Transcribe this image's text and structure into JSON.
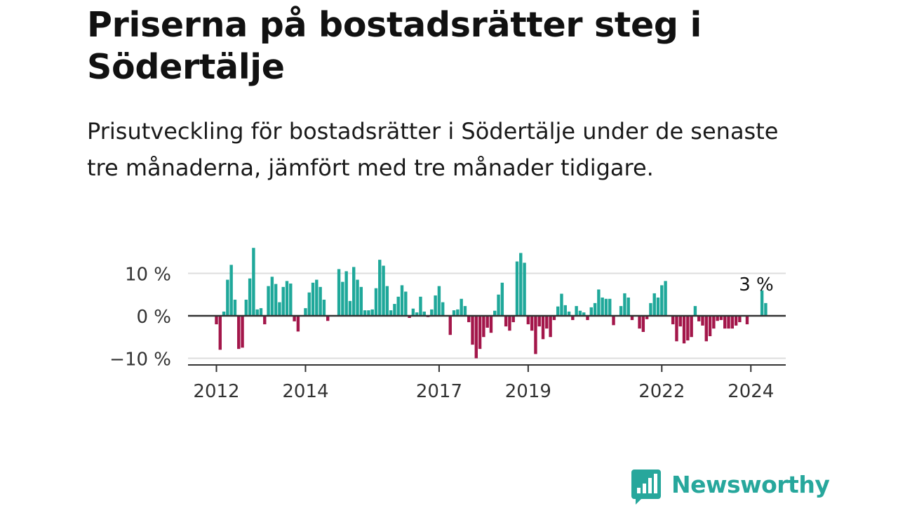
{
  "title": "Priserna på bostadsrätter steg i Södertälje",
  "subtitle": "Prisutveckling för bostadsrätter i Södertälje under de senaste tre månaderna, jämfört med tre månader tidigare.",
  "logo": {
    "text": "Newsworthy",
    "icon": "bar-chart-speech-icon"
  },
  "colors": {
    "positive": "#1fa89a",
    "negative": "#a3164a",
    "axis": "#333333",
    "grid": "#dddddd",
    "brand": "#27a79c"
  },
  "chart_data": {
    "type": "bar",
    "title": "",
    "xlabel": "",
    "ylabel": "",
    "ylim": [
      -11,
      15
    ],
    "y_ticks": [
      {
        "value": 10,
        "label": "10 %"
      },
      {
        "value": 0,
        "label": "0 %"
      },
      {
        "value": -10,
        "label": "−10 %"
      }
    ],
    "x_ticks": [
      "2012",
      "2014",
      "2017",
      "2019",
      "2022",
      "2024"
    ],
    "grid": true,
    "legend": "none",
    "start": "2012-01",
    "frequency": "monthly",
    "annotation": {
      "text": "3 %",
      "value": 3
    },
    "values": [
      -2,
      -8,
      1,
      8.5,
      12,
      3.8,
      -7.8,
      -7.5,
      3.8,
      8.8,
      16,
      1.5,
      1.8,
      -2,
      7,
      9.2,
      7.5,
      3.2,
      6.8,
      8.2,
      7.6,
      -1.3,
      -3.7,
      0,
      1.8,
      5.5,
      7.8,
      8.5,
      6.8,
      3.8,
      -1.2,
      0,
      0,
      11,
      8,
      10.5,
      3.5,
      11.5,
      8.5,
      6.8,
      1.3,
      1.3,
      1.5,
      6.5,
      13.2,
      11.8,
      7,
      1.3,
      2.8,
      4.5,
      7.2,
      5.7,
      -0.5,
      1.7,
      0.8,
      4.5,
      1,
      -0.3,
      1.5,
      4.8,
      7,
      3.2,
      0,
      -4.5,
      1.3,
      1.5,
      4,
      2.3,
      -1.5,
      -6.8,
      -10,
      -7.8,
      -5,
      -2.8,
      -4,
      1.2,
      5,
      7.8,
      -2.5,
      -3.5,
      -1.5,
      12.8,
      14.8,
      12.5,
      -2,
      -3.5,
      -9,
      -2.5,
      -5.5,
      -3,
      -5,
      -1,
      2.2,
      5.2,
      2.5,
      1,
      -1,
      2.3,
      1.2,
      0.8,
      -1,
      2,
      3,
      6.2,
      4.3,
      4,
      4,
      -2.2,
      0,
      2.3,
      5.3,
      4.3,
      -1,
      0,
      -3,
      -3.8,
      -0.8,
      3,
      5.3,
      4.3,
      7.2,
      8.2,
      0,
      -2,
      -6,
      -2.5,
      -6.5,
      -5.8,
      -5,
      2.3,
      -1.3,
      -2.3,
      -6,
      -4.8,
      -3,
      -1.2,
      -1,
      -3,
      -3,
      -3,
      -2.3,
      -1.5,
      0,
      -2,
      0,
      0,
      0,
      6,
      3
    ]
  }
}
